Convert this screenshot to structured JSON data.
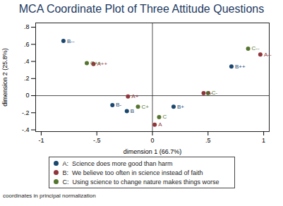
{
  "chart_data": {
    "type": "scatter",
    "title": "MCA Coordinate Plot of Three Attitude Questions",
    "x_label": "dimension 1 (66.7%)",
    "y_label": "dimension 2 (25.8%)",
    "caption": "coordinates in principal normalization",
    "xlim": [
      -1.05,
      1.05
    ],
    "ylim": [
      -0.42,
      0.85
    ],
    "xticks": [
      -1,
      {
        "value": -0.5,
        "label": "-.5"
      },
      0,
      {
        "value": 0.5,
        "label": ".5"
      },
      1
    ],
    "yticks": [
      {
        "value": -0.4,
        "label": "-.4"
      },
      {
        "value": -0.2,
        "label": "-.2"
      },
      0,
      {
        "value": 0.2,
        "label": ".2"
      },
      {
        "value": 0.4,
        "label": ".4"
      },
      {
        "value": 0.6,
        "label": ".6"
      },
      {
        "value": 0.8,
        "label": ".8"
      }
    ],
    "grid": false,
    "legend": "bottom",
    "series": [
      {
        "name": "A:  Science does more good than harm",
        "color": "#1a476f",
        "labels": [
          "B--",
          "B++",
          "B-",
          "B",
          "B+"
        ],
        "x": [
          -0.8,
          0.71,
          -0.36,
          -0.23,
          0.19
        ],
        "values": [
          0.64,
          0.34,
          -0.11,
          -0.18,
          -0.13
        ]
      },
      {
        "name": "B:  We believe too often in science instead of faith",
        "color": "#90353b",
        "labels": [
          "A++",
          "A+",
          "A",
          "A-",
          "A--"
        ],
        "x": [
          -0.53,
          -0.22,
          0.02,
          0.46,
          0.97
        ],
        "values": [
          0.37,
          -0.01,
          -0.34,
          0.03,
          0.48
        ]
      },
      {
        "name": "C:  Using science to change nature makes things worse",
        "color": "#55752f",
        "labels": [
          "C++",
          "C+",
          "C",
          "C-",
          "C--"
        ],
        "x": [
          -0.59,
          -0.13,
          0.06,
          0.5,
          0.86
        ],
        "values": [
          0.38,
          -0.13,
          -0.25,
          0.03,
          0.55
        ]
      }
    ]
  }
}
